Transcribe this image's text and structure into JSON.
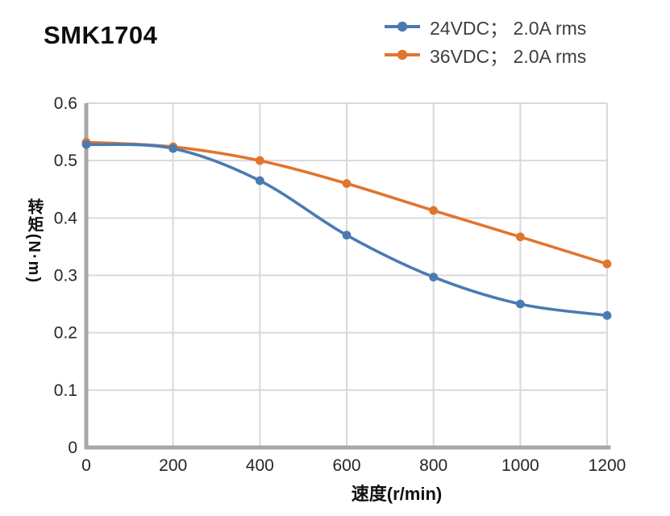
{
  "title": "SMK1704",
  "legend": {
    "items": [
      {
        "label": "24VDC； 2.0A rms"
      },
      {
        "label": "36VDC； 2.0A rms"
      }
    ]
  },
  "colors": {
    "series_24vdc": "#4b7ab3",
    "series_36vdc": "#e0752e",
    "grid": "#d9d9d9",
    "axis": "#a8a8a8",
    "tick_text": "#262626",
    "legend_text": "#3f3f3f",
    "title_text": "#0e0e0e",
    "background": "#ffffff"
  },
  "chart_data": {
    "type": "line",
    "x": [
      0,
      200,
      400,
      600,
      800,
      1000,
      1200
    ],
    "series": [
      {
        "key": "24vdc",
        "name": "24VDC； 2.0A rms",
        "color": "#4b7ab3",
        "values": [
          0.528,
          0.521,
          0.465,
          0.37,
          0.297,
          0.25,
          0.23
        ]
      },
      {
        "key": "36vdc",
        "name": "36VDC； 2.0A rms",
        "color": "#e0752e",
        "values": [
          0.532,
          0.524,
          0.5,
          0.46,
          0.413,
          0.367,
          0.32
        ]
      }
    ],
    "title": "SMK1704",
    "xlabel": "速度(r/min)",
    "ylabel": "转矩(N·m)",
    "xlim": [
      0,
      1200
    ],
    "ylim": [
      0,
      0.6
    ],
    "x_ticks": [
      0,
      200,
      400,
      600,
      800,
      1000,
      1200
    ],
    "y_ticks": [
      0,
      0.1,
      0.2,
      0.3,
      0.4,
      0.5,
      0.6
    ],
    "grid": true,
    "legend_position": "top-right",
    "marker": "circle",
    "smooth": true
  }
}
